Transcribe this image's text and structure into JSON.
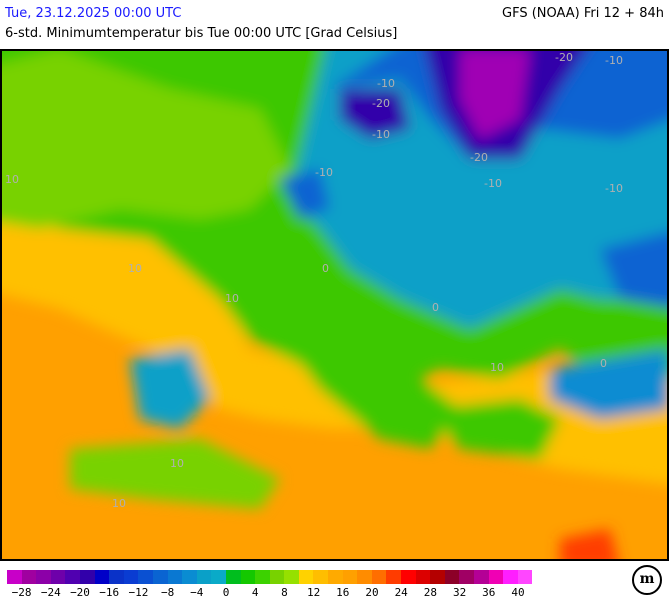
{
  "header": {
    "valid_time": "Tue, 23.12.2025 00:00 UTC",
    "model_run": "GFS (NOAA) Fri 12 + 84h",
    "parameter": "6-std. Minimumtemperatur bis Tue 00:00 UTC [Grad Celsius]"
  },
  "map": {
    "variable": "6-hour minimum temperature",
    "contour_labels": [
      "-20",
      "-20",
      "-20",
      "-10",
      "-10",
      "-10",
      "-10",
      "-10",
      "-10",
      "0",
      "0",
      "0",
      "10",
      "10",
      "10",
      "10",
      "10",
      "10"
    ]
  },
  "legend": {
    "colors": [
      "#c800c8",
      "#a000a0",
      "#8c00a8",
      "#6e00aa",
      "#5000b0",
      "#3200aa",
      "#0000c8",
      "#0a32c8",
      "#0a3cd2",
      "#0a50d2",
      "#0a64d2",
      "#0a78d2",
      "#0a8cd2",
      "#0aa0c8",
      "#0aaac8",
      "#00be1e",
      "#14c800",
      "#3cd200",
      "#78d200",
      "#96e000",
      "#ffd200",
      "#ffbe00",
      "#ffaa00",
      "#ffa000",
      "#ff8c00",
      "#ff6e00",
      "#ff3c00",
      "#ff0000",
      "#dc0000",
      "#b40000",
      "#8c0028",
      "#a00064",
      "#b40096",
      "#f000b4",
      "#ff1eff",
      "#ff46ff"
    ],
    "labels": [
      "−28",
      "−24",
      "−20",
      "−16",
      "−12",
      "−8",
      "−4",
      "0",
      "4",
      "8",
      "12",
      "16",
      "20",
      "24",
      "28",
      "32",
      "36",
      "40"
    ]
  },
  "logo": {
    "text": "m"
  }
}
